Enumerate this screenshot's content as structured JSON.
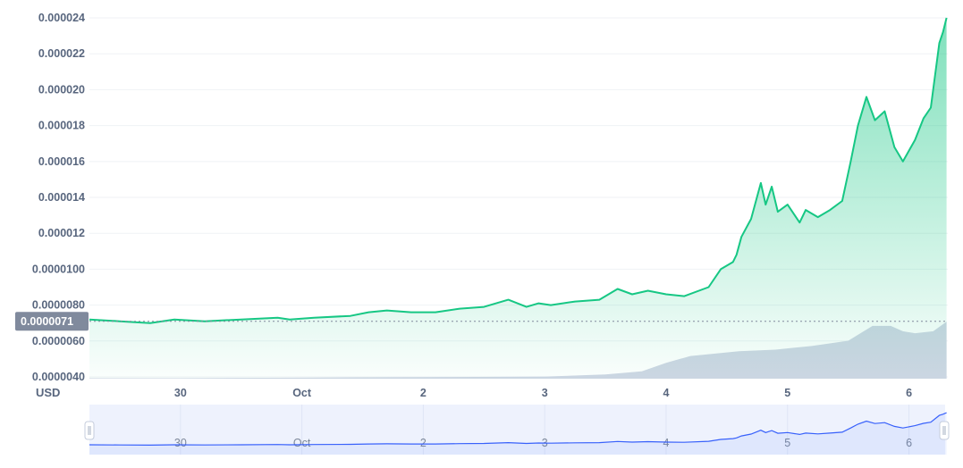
{
  "colors": {
    "price_line": "#16c784",
    "area_top": "#16c784",
    "volume": "#cfd6e4",
    "grid": "#eff2f5",
    "axis_text": "#58667e",
    "current_badge": "#808a9d",
    "navigator_bg": "#eef2fd",
    "navigator_line": "#3861fb"
  },
  "chart_data": {
    "type": "area",
    "title": "",
    "ylabel": "USD",
    "ylim": [
      3.9e-06,
      2.45e-05
    ],
    "y_ticks": [
      "0.0000040",
      "0.0000060",
      "0.0000080",
      "0.0000100",
      "0.000012",
      "0.000014",
      "0.000016",
      "0.000018",
      "0.000020",
      "0.000022",
      "0.000024"
    ],
    "y_tick_values": [
      4e-06,
      6e-06,
      8e-06,
      1e-05,
      1.2e-05,
      1.4e-05,
      1.6e-05,
      1.8e-05,
      2e-05,
      2.2e-05,
      2.4e-05
    ],
    "x_ticks": [
      "30",
      "Oct",
      "2",
      "3",
      "4",
      "5",
      "6"
    ],
    "x_tick_days": [
      1,
      2,
      3,
      4,
      5,
      6,
      7
    ],
    "xlim_days": [
      0.25,
      7.32
    ],
    "current_price_label": "0.0000071",
    "current_price": 7.1e-06,
    "grid": true,
    "series": [
      {
        "x_days": [
          0.25,
          0.5,
          0.75,
          0.95,
          1.2,
          1.5,
          1.8,
          1.9,
          2.1,
          2.4,
          2.55,
          2.7,
          2.9,
          3.1,
          3.3,
          3.5,
          3.7,
          3.85,
          3.95,
          4.05,
          4.25,
          4.45,
          4.6,
          4.72,
          4.85,
          5.0,
          5.15,
          5.35,
          5.45,
          5.55,
          5.58,
          5.62,
          5.7,
          5.78,
          5.82,
          5.87,
          5.92,
          6.0,
          6.1,
          6.15,
          6.25,
          6.35,
          6.45,
          6.52,
          6.58,
          6.65,
          6.72,
          6.8,
          6.88,
          6.95,
          7.05,
          7.12,
          7.18,
          7.25,
          7.28,
          7.31
        ],
        "values": [
          7.2e-06,
          7.1e-06,
          7e-06,
          7.2e-06,
          7.1e-06,
          7.2e-06,
          7.3e-06,
          7.2e-06,
          7.3e-06,
          7.4e-06,
          7.6e-06,
          7.7e-06,
          7.6e-06,
          7.6e-06,
          7.8e-06,
          7.9e-06,
          8.3e-06,
          7.9e-06,
          8.1e-06,
          8e-06,
          8.2e-06,
          8.3e-06,
          8.9e-06,
          8.6e-06,
          8.8e-06,
          8.6e-06,
          8.5e-06,
          9e-06,
          1e-05,
          1.04e-05,
          1.08e-05,
          1.18e-05,
          1.28e-05,
          1.48e-05,
          1.36e-05,
          1.46e-05,
          1.32e-05,
          1.36e-05,
          1.26e-05,
          1.33e-05,
          1.29e-05,
          1.33e-05,
          1.38e-05,
          1.6e-05,
          1.8e-05,
          1.96e-05,
          1.83e-05,
          1.88e-05,
          1.68e-05,
          1.6e-05,
          1.72e-05,
          1.84e-05,
          1.9e-05,
          2.26e-05,
          2.32e-05,
          2.4e-05
        ]
      }
    ],
    "volume": {
      "x_days": [
        0.25,
        1.0,
        2.0,
        3.0,
        4.0,
        4.5,
        4.8,
        5.0,
        5.2,
        5.6,
        5.9,
        6.2,
        6.5,
        6.7,
        6.85,
        6.95,
        7.05,
        7.2,
        7.31
      ],
      "values": [
        0.01,
        0.01,
        0.02,
        0.03,
        0.04,
        0.08,
        0.14,
        0.3,
        0.43,
        0.52,
        0.55,
        0.62,
        0.72,
        1.0,
        1.0,
        0.9,
        0.86,
        0.9,
        1.08
      ]
    }
  }
}
